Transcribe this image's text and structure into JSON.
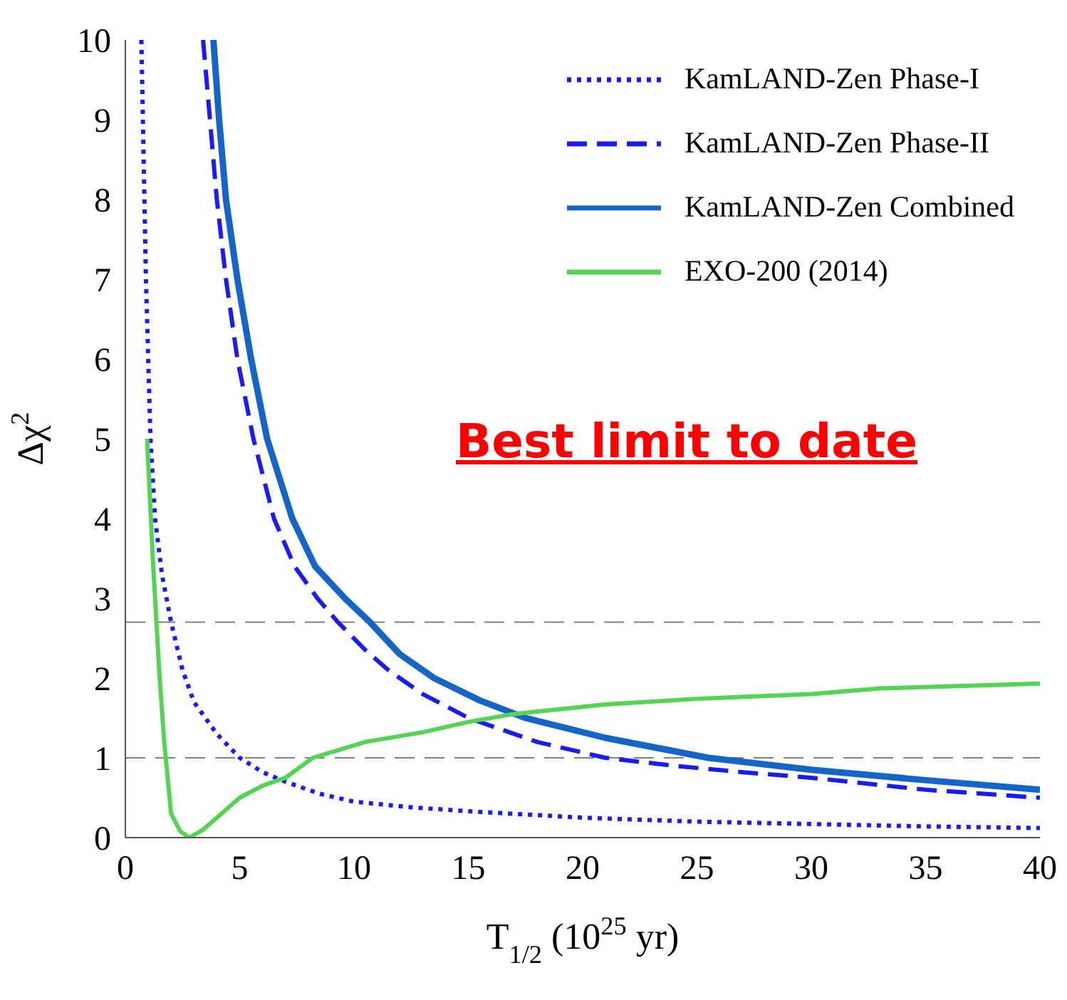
{
  "chart_data": {
    "type": "line",
    "xlabel": "T$_{1/2}$ (10$^{25}$ yr)",
    "ylabel": "Δχ$^{2}$",
    "xlim": [
      0,
      40
    ],
    "xticks": [
      0,
      5,
      10,
      15,
      20,
      25,
      30,
      35,
      40
    ],
    "ylim": [
      0,
      10
    ],
    "yticks": [
      0,
      1,
      2,
      3,
      4,
      5,
      6,
      7,
      8,
      9,
      10
    ],
    "grid": false,
    "legend": "top right",
    "marker": "none",
    "ref_lines": [
      {
        "axis": "y",
        "value": 2.7,
        "label": null,
        "color": "#808080",
        "line_style": "dashed"
      },
      {
        "axis": "y",
        "value": 1,
        "label": null,
        "color": "#808080",
        "line_style": "dashed"
      }
    ],
    "annotations": [
      "Best limit to date"
    ],
    "series": [
      {
        "name": "KamLAND-Zen Phase-I",
        "color": "#1a1aff",
        "line_style": "dotted",
        "x": [
          0.7,
          0.8,
          0.9,
          1.0,
          1.1,
          1.3,
          1.6,
          2.0,
          2.5,
          3.0,
          4.0,
          5.0,
          6.0,
          7.0,
          8.5,
          10,
          12.5,
          15,
          20,
          25,
          30,
          35,
          40
        ],
        "values": [
          10,
          8.5,
          7,
          6,
          5,
          4,
          3.3,
          2.7,
          2.1,
          1.7,
          1.3,
          1.0,
          0.82,
          0.7,
          0.55,
          0.45,
          0.38,
          0.33,
          0.25,
          0.2,
          0.17,
          0.14,
          0.12
        ]
      },
      {
        "name": "KamLAND-Zen Phase-II",
        "color": "#1a1aff",
        "line_style": "dashed",
        "x": [
          3.4,
          3.7,
          4.0,
          4.4,
          4.9,
          5.6,
          6.5,
          7.4,
          8.4,
          9.3,
          10.5,
          11.5,
          13,
          15,
          18,
          21,
          24,
          27,
          30,
          35,
          40
        ],
        "values": [
          10,
          9,
          8,
          7,
          6,
          5,
          4,
          3.4,
          3,
          2.7,
          2.35,
          2.1,
          1.8,
          1.5,
          1.2,
          1.0,
          0.9,
          0.82,
          0.75,
          0.6,
          0.5
        ]
      },
      {
        "name": "KamLAND-Zen Combined",
        "color": "#1565c8",
        "line_style": "solid",
        "x": [
          3.85,
          4.1,
          4.4,
          4.9,
          5.5,
          6.2,
          7.3,
          8.3,
          9.6,
          10.7,
          12,
          13.5,
          15.5,
          17.5,
          21,
          25.5,
          30,
          35,
          40
        ],
        "values": [
          10,
          9,
          8,
          7,
          6,
          5,
          4,
          3.4,
          3,
          2.7,
          2.3,
          2,
          1.72,
          1.5,
          1.25,
          1.0,
          0.85,
          0.72,
          0.6
        ]
      },
      {
        "name": "EXO-200 (2014)",
        "color": "#55d355",
        "line_style": "solid",
        "x": [
          0.95,
          1.2,
          1.5,
          1.7,
          2.0,
          2.4,
          2.8,
          3.4,
          4.2,
          5,
          6,
          7,
          8.2,
          10.5,
          13,
          15,
          17,
          21,
          25,
          30,
          33,
          40
        ],
        "values": [
          5,
          3.5,
          2,
          1.2,
          0.3,
          0.08,
          0,
          0.1,
          0.3,
          0.5,
          0.65,
          0.75,
          1.0,
          1.2,
          1.32,
          1.45,
          1.55,
          1.67,
          1.74,
          1.8,
          1.87,
          1.93
        ]
      }
    ]
  }
}
